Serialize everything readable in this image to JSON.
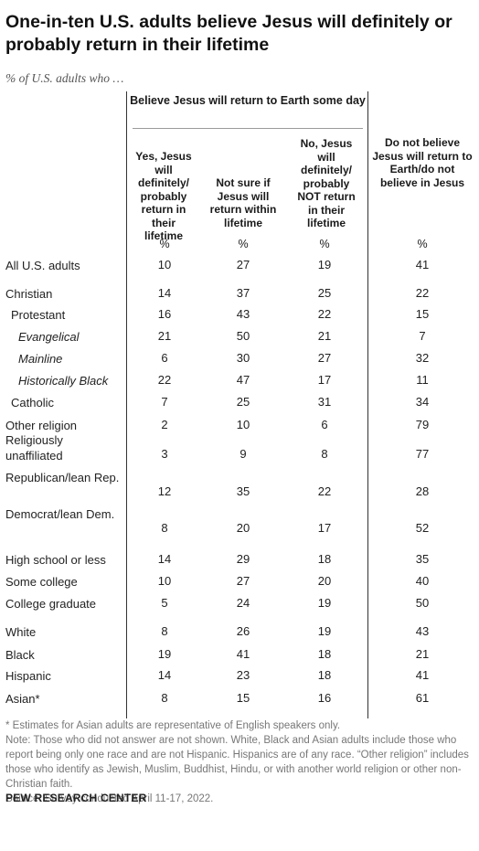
{
  "title": "One-in-ten U.S. adults believe Jesus will definitely or probably return in their lifetime",
  "subtitle": "% of U.S. adults who …",
  "chart_data": {
    "type": "table",
    "group_header": "Believe Jesus will return to Earth some day",
    "columns": [
      "Yes, Jesus will definitely/ probably return in their lifetime",
      "Not sure if Jesus will return within lifetime",
      "No, Jesus will definitely/ probably NOT return in their lifetime",
      "Do not believe Jesus will return to Earth/do not believe in Jesus"
    ],
    "unit_row": [
      "%",
      "%",
      "%",
      "%"
    ],
    "rows": [
      {
        "label": "All U.S. adults",
        "values": [
          10,
          27,
          19,
          41
        ]
      },
      {
        "label": "Christian",
        "values": [
          14,
          37,
          25,
          22
        ]
      },
      {
        "label": "Protestant",
        "values": [
          16,
          43,
          22,
          15
        ]
      },
      {
        "label": "Evangelical",
        "values": [
          21,
          50,
          21,
          7
        ]
      },
      {
        "label": "Mainline",
        "values": [
          6,
          30,
          27,
          32
        ]
      },
      {
        "label": "Historically Black",
        "values": [
          22,
          47,
          17,
          11
        ]
      },
      {
        "label": "Catholic",
        "values": [
          7,
          25,
          31,
          34
        ]
      },
      {
        "label": "Other religion",
        "values": [
          2,
          10,
          6,
          79
        ]
      },
      {
        "label": "Religiously unaffiliated",
        "values": [
          3,
          9,
          8,
          77
        ]
      },
      {
        "label": "Republican/lean Rep.",
        "values": [
          12,
          35,
          22,
          28
        ]
      },
      {
        "label": "Democrat/lean Dem.",
        "values": [
          8,
          20,
          17,
          52
        ]
      },
      {
        "label": "High school or less",
        "values": [
          14,
          29,
          18,
          35
        ]
      },
      {
        "label": "Some college",
        "values": [
          10,
          27,
          20,
          40
        ]
      },
      {
        "label": "College graduate",
        "values": [
          5,
          24,
          19,
          50
        ]
      },
      {
        "label": "White",
        "values": [
          8,
          26,
          19,
          43
        ]
      },
      {
        "label": "Black",
        "values": [
          19,
          41,
          18,
          21
        ]
      },
      {
        "label": "Hispanic",
        "values": [
          14,
          23,
          18,
          41
        ]
      },
      {
        "label": "Asian*",
        "values": [
          8,
          15,
          16,
          61
        ]
      }
    ]
  },
  "notes": {
    "footnote": "* Estimates for Asian adults are representative of English speakers only.",
    "note": "Note: Those who did not answer are not shown. White, Black and Asian adults include those who report being only one race and are not Hispanic. Hispanics are of any race. “Other religion” includes those who identify as Jewish, Muslim, Buddhist, Hindu, or with another world religion or other non-Christian faith.",
    "source": "Source: Survey conducted April 11-17, 2022."
  },
  "brand": "PEW RESEARCH CENTER"
}
